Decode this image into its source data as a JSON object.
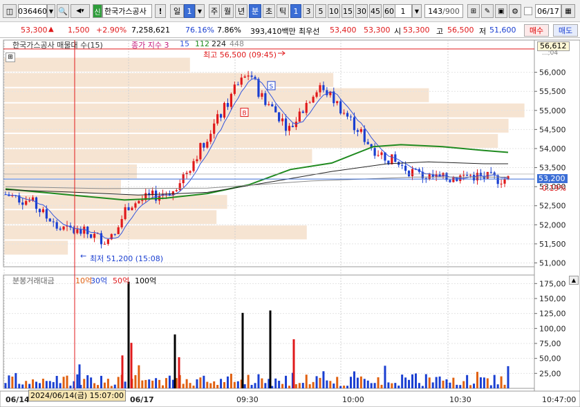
{
  "toolbar": {
    "code": "036460",
    "stock_badge": "신",
    "stock_name": "한국가스공사",
    "alert": "!",
    "period_day": "일",
    "period_num": "1",
    "period_week": "주",
    "period_month": "월",
    "period_year": "년",
    "period_min": "분",
    "period_sec": "초",
    "period_tick": "틱",
    "intervals": [
      "1",
      "3",
      "5",
      "10",
      "15",
      "30",
      "45",
      "60"
    ],
    "interval_custom": "1",
    "count": "143",
    "count_total": "/900",
    "date": "06/17"
  },
  "info": {
    "price": "53,300",
    "arrow": "▲",
    "change": "1,500",
    "change_pct": "+2.90%",
    "volume": "7,258,621",
    "vol_ratio": "76.16%",
    "turnover": "7.86%",
    "amount": "393,410백만",
    "best_label": "최우선",
    "best_ask": "53,400",
    "best_bid": "53,300",
    "open_label": "시",
    "open": "53,300",
    "high_label": "고",
    "high": "56,500",
    "low_label": "저",
    "low": "51,600",
    "buy": "매수",
    "sell": "매도"
  },
  "legend": {
    "title": "한국가스공사 매물대 수(15)",
    "ma_label": "종가 지수 3",
    "ma1": "15",
    "ma2": "112",
    "ma3": "224",
    "ma4": "448",
    "vol_title": "분봉거래대금",
    "vol_ma1": "10억",
    "vol_ma2": "30억",
    "vol_ma3": "50억",
    "vol_ma4": "100억"
  },
  "annotations": {
    "high": "최고 56,500 (09:45)",
    "low": "최저 51,200 (15:08)",
    "cursor_date": "2024/06/14(금) 15:07:00",
    "current_price": "53,200",
    "current_pct": "-0.19%",
    "crosshair_price": "56,612",
    "partial_tick": "...;04"
  },
  "colors": {
    "up": "#e0191b",
    "down": "#1a3fd1",
    "volume_profile": "#f6e4d2",
    "ma_green": "#1f8a1f",
    "ma_black": "#222222",
    "ma_grey": "#8a8a8a",
    "ma_blue": "#3355dd",
    "price_box": "#3b6ed6"
  },
  "chart_data": {
    "type": "candlestick",
    "price_axis": {
      "ticks": [
        "56,000",
        "55,500",
        "55,000",
        "54,500",
        "54,000",
        "53,500",
        "53,000",
        "52,500",
        "52,000",
        "51,500",
        "51,000"
      ],
      "values": [
        56000,
        55500,
        55000,
        54500,
        54000,
        53500,
        53000,
        52500,
        52000,
        51500,
        51000
      ],
      "ylim": [
        50900,
        56700
      ]
    },
    "volume_axis": {
      "ticks": [
        "175,00",
        "150,00",
        "125,00",
        "100,00",
        "75,00",
        "50,00",
        "25,00"
      ],
      "values": [
        175,
        150,
        125,
        100,
        75,
        50,
        25
      ],
      "ylim": [
        0,
        180
      ]
    },
    "x_ticks": [
      "06/14",
      "06/17",
      "09:30",
      "10:00",
      "10:30",
      "10:47:00"
    ],
    "volume_profile_price_levels": [
      56200,
      55800,
      55400,
      55000,
      54600,
      54200,
      53800,
      53400,
      53000,
      52600,
      52200,
      51800,
      51400
    ],
    "volume_profile_relative": [
      0.35,
      0.62,
      0.8,
      0.98,
      0.95,
      0.93,
      0.58,
      0.25,
      0.22,
      0.42,
      0.4,
      0.57,
      0.12
    ],
    "high": 56500,
    "low": 51200,
    "last": 53200
  }
}
